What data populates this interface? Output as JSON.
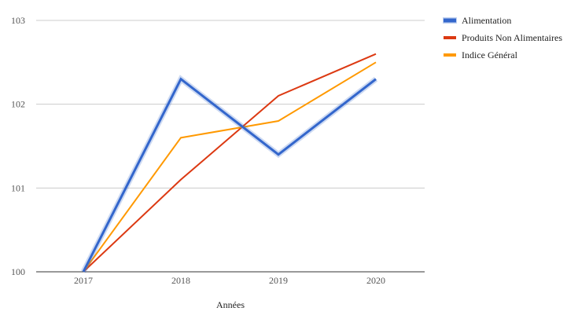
{
  "chart_data": {
    "type": "line",
    "title": "",
    "xlabel": "Années",
    "ylabel": "",
    "categories": [
      "2017",
      "2018",
      "2019",
      "2020"
    ],
    "ylim": [
      100,
      103
    ],
    "yticks": [
      "100",
      "101",
      "102",
      "103"
    ],
    "grid": true,
    "legend_position": "right",
    "series": [
      {
        "name": "Alimentation",
        "values": [
          100.0,
          102.3,
          101.4,
          102.3
        ],
        "color": "#3366cc",
        "emphasized": true
      },
      {
        "name": "Produits Non Alimentaires",
        "values": [
          100.0,
          101.1,
          102.1,
          102.6
        ],
        "color": "#dc3912",
        "emphasized": false
      },
      {
        "name": "Indice Général",
        "values": [
          100.0,
          101.6,
          101.8,
          102.5
        ],
        "color": "#ff9900",
        "emphasized": false
      }
    ]
  }
}
